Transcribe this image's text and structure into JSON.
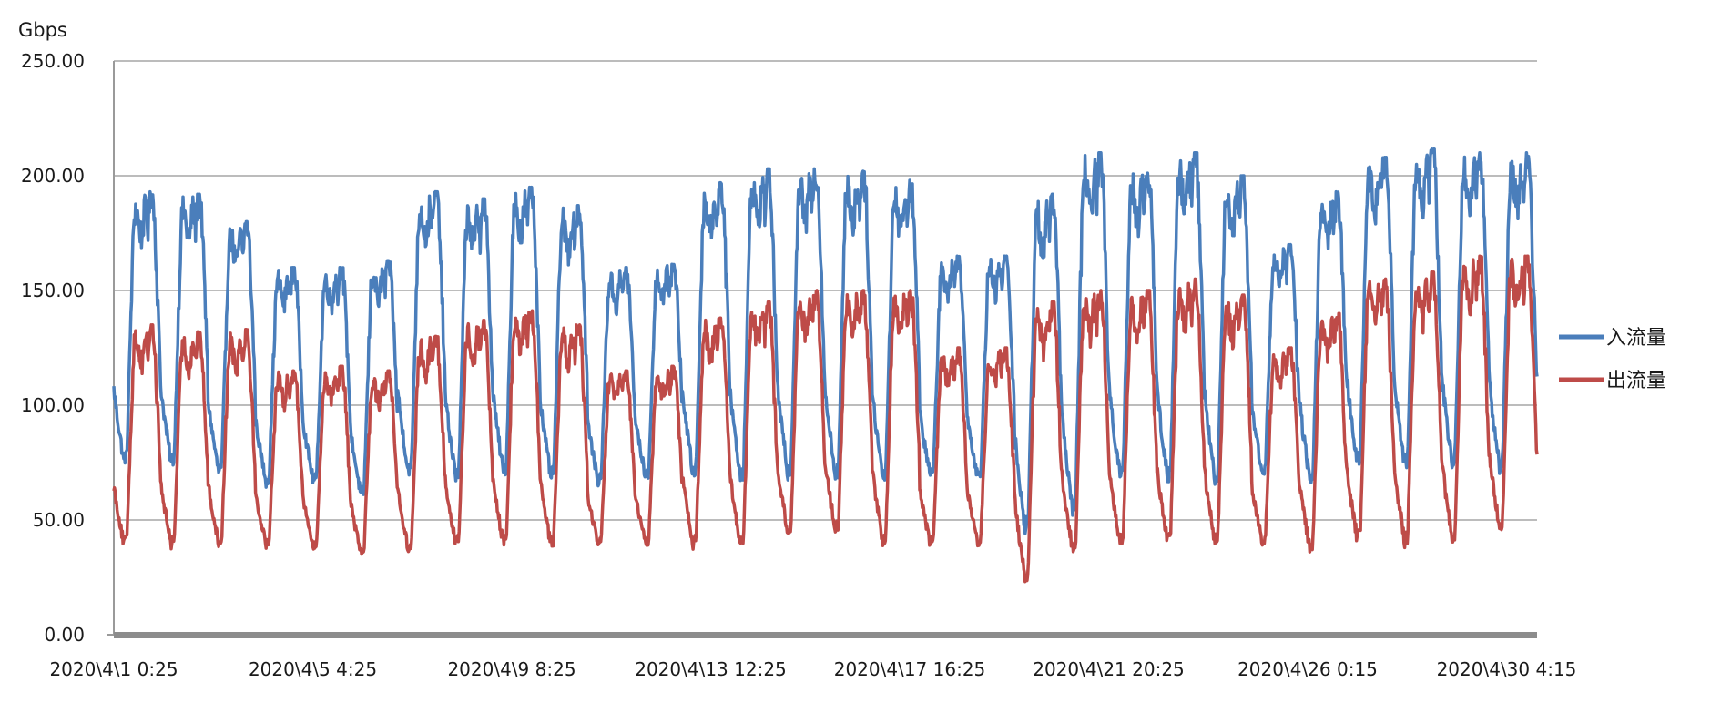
{
  "chart_data": {
    "type": "line",
    "title": "",
    "ylabel": "Gbps",
    "xlabel": "",
    "ylim": [
      0,
      250
    ],
    "y_ticks": [
      "0.00",
      "50.00",
      "100.00",
      "150.00",
      "200.00",
      "250.00"
    ],
    "x_tick_labels": [
      "2020\\4\\1 0:25",
      "2020\\4\\5 4:25",
      "2020\\4\\9 8:25",
      "2020\\4\\13 12:25",
      "2020\\4\\17 16:25",
      "2020\\4\\21 20:25",
      "2020\\4\\26 0:15",
      "2020\\4\\30 4:15"
    ],
    "x_range": [
      "2020\\4\\1 0:25",
      "2020\\4\\30 23:55"
    ],
    "grid": true,
    "legend_position": "right",
    "days": [
      "4/1",
      "4/2",
      "4/3",
      "4/4",
      "4/5",
      "4/6",
      "4/7",
      "4/8",
      "4/9",
      "4/10",
      "4/11",
      "4/12",
      "4/13",
      "4/14",
      "4/15",
      "4/16",
      "4/17",
      "4/18",
      "4/19",
      "4/20",
      "4/21",
      "4/22",
      "4/23",
      "4/24",
      "4/25",
      "4/26",
      "4/27",
      "4/28",
      "4/29",
      "4/30"
    ],
    "series": [
      {
        "name": "入流量",
        "color": "#4a7ebb",
        "daily_peak": [
          193,
          192,
          180,
          160,
          160,
          163,
          193,
          190,
          195,
          187,
          160,
          162,
          197,
          203,
          203,
          202,
          198,
          165,
          165,
          192,
          210,
          203,
          210,
          200,
          170,
          193,
          208,
          212,
          210,
          210
        ],
        "daily_trough": [
          75,
          74,
          70,
          66,
          66,
          60,
          70,
          68,
          70,
          68,
          66,
          68,
          69,
          68,
          69,
          69,
          68,
          69,
          68,
          45,
          52,
          68,
          67,
          67,
          70,
          66,
          74,
          73,
          74,
          72
        ]
      },
      {
        "name": "出流量",
        "color": "#be4b48",
        "daily_peak": [
          135,
          132,
          133,
          115,
          117,
          115,
          130,
          137,
          142,
          135,
          115,
          117,
          138,
          145,
          150,
          150,
          150,
          125,
          125,
          145,
          150,
          150,
          155,
          148,
          125,
          140,
          155,
          158,
          165,
          165
        ],
        "daily_trough": [
          39,
          39,
          39,
          39,
          37,
          35,
          36,
          39,
          39,
          39,
          39,
          39,
          39,
          39,
          43,
          45,
          40,
          39,
          39,
          24,
          36,
          39,
          40,
          40,
          40,
          37,
          41,
          40,
          41,
          46
        ]
      }
    ]
  }
}
